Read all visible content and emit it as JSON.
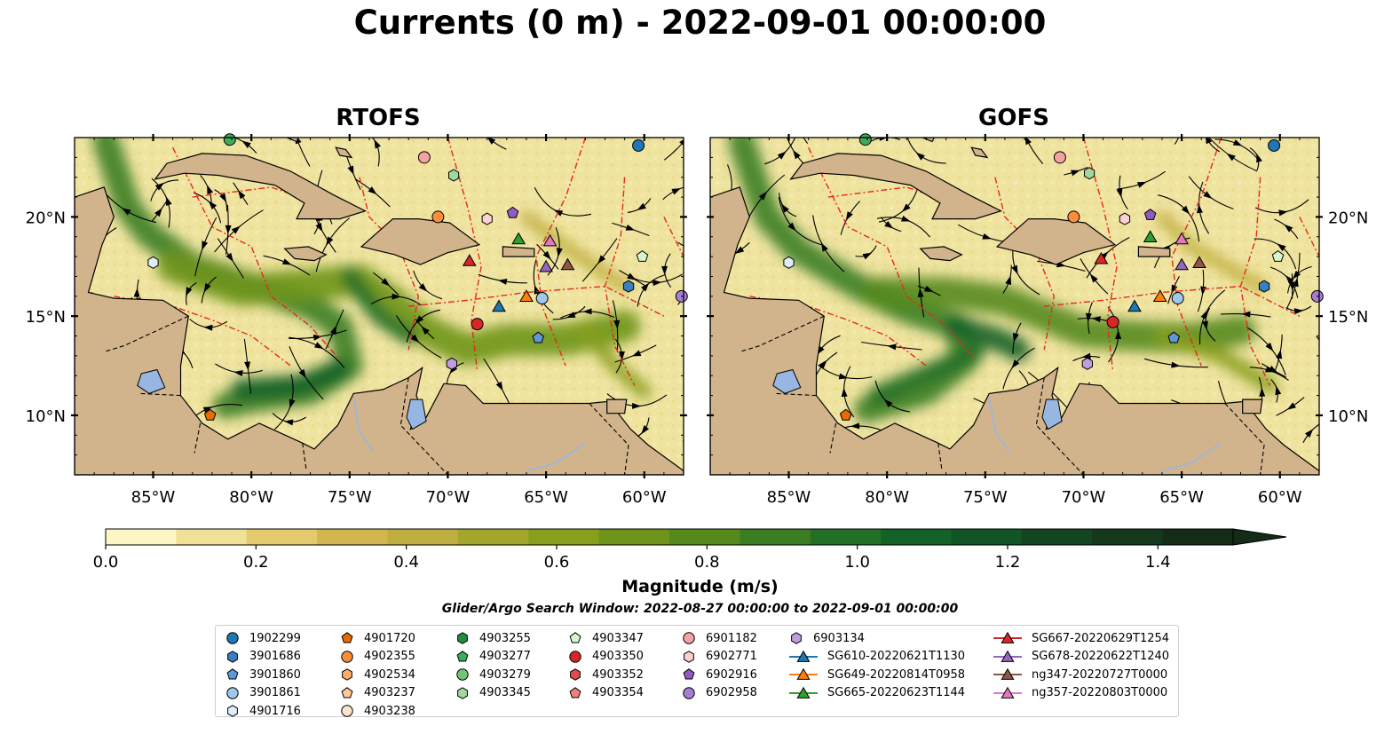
{
  "figure": {
    "title": "Currents (0 m) - 2022-09-01 00:00:00",
    "search_window": "Glider/Argo Search Window: 2022-08-27 00:00:00 to 2022-09-01 00:00:00"
  },
  "chart_data": {
    "type": "heatmap",
    "variable": "Currents (0 m)",
    "panels": [
      {
        "title": "RTOFS"
      },
      {
        "title": "GOFS"
      }
    ],
    "lon_range": [
      -89,
      -58
    ],
    "lat_range": [
      7,
      24
    ],
    "x_ticks": [
      {
        "value": -85,
        "label": "85°W"
      },
      {
        "value": -80,
        "label": "80°W"
      },
      {
        "value": -75,
        "label": "75°W"
      },
      {
        "value": -70,
        "label": "70°W"
      },
      {
        "value": -65,
        "label": "65°W"
      },
      {
        "value": -60,
        "label": "60°W"
      }
    ],
    "y_ticks": [
      {
        "value": 10,
        "label": "10°N"
      },
      {
        "value": 15,
        "label": "15°N"
      },
      {
        "value": 20,
        "label": "20°N"
      }
    ],
    "colorbar": {
      "label": "Magnitude (m/s)",
      "min": 0.0,
      "max": 1.5,
      "extend": "max",
      "ticks": [
        "0.0",
        "0.2",
        "0.4",
        "0.6",
        "0.8",
        "1.0",
        "1.2",
        "1.4"
      ],
      "tick_values": [
        0.0,
        0.2,
        0.4,
        0.6,
        0.8,
        1.0,
        1.2,
        1.4
      ],
      "colors": [
        "#fbf6c4",
        "#f0e196",
        "#e2ca6d",
        "#d2b64f",
        "#bfae3f",
        "#a3a72c",
        "#889f1c",
        "#6e951a",
        "#548a1c",
        "#3b7e21",
        "#246f26",
        "#156228",
        "#115426",
        "#124621",
        "#13381c",
        "#132b17"
      ]
    },
    "legend": {
      "columns": [
        [
          {
            "label": "1902299",
            "marker": "circle",
            "color": "#1f77b4"
          },
          {
            "label": "3901686",
            "marker": "hexagon",
            "color": "#3a7fc2"
          },
          {
            "label": "3901860",
            "marker": "pentagon",
            "color": "#5f98d6"
          },
          {
            "label": "3901861",
            "marker": "circle",
            "color": "#9ec8ec"
          },
          {
            "label": "4901716",
            "marker": "hexagon",
            "color": "#ddeefb"
          }
        ],
        [
          {
            "label": "4901720",
            "marker": "pentagon",
            "color": "#e86b00"
          },
          {
            "label": "4902355",
            "marker": "circle",
            "color": "#fd8d3c"
          },
          {
            "label": "4902534",
            "marker": "hexagon",
            "color": "#fdae6b"
          },
          {
            "label": "4903237",
            "marker": "pentagon",
            "color": "#fdc89a"
          },
          {
            "label": "4903238",
            "marker": "circle",
            "color": "#fee6ce"
          }
        ],
        [
          {
            "label": "4903255",
            "marker": "hexagon",
            "color": "#238b45"
          },
          {
            "label": "4903277",
            "marker": "pentagon",
            "color": "#41ab5d"
          },
          {
            "label": "4903279",
            "marker": "circle",
            "color": "#74c476"
          },
          {
            "label": "4903345",
            "marker": "hexagon",
            "color": "#a1d99b"
          }
        ],
        [
          {
            "label": "4903347",
            "marker": "pentagon",
            "color": "#d9f5d0"
          },
          {
            "label": "4903350",
            "marker": "circle",
            "color": "#d62728"
          },
          {
            "label": "4903352",
            "marker": "hexagon",
            "color": "#e34a4a"
          },
          {
            "label": "4903354",
            "marker": "pentagon",
            "color": "#f08080"
          }
        ],
        [
          {
            "label": "6901182",
            "marker": "circle",
            "color": "#f4a3a3"
          },
          {
            "label": "6902771",
            "marker": "hexagon",
            "color": "#fbd1d1"
          },
          {
            "label": "6902916",
            "marker": "pentagon",
            "color": "#8e5cc2"
          },
          {
            "label": "6902958",
            "marker": "circle",
            "color": "#a57fd1"
          }
        ],
        [
          {
            "label": "6903134",
            "marker": "hexagon",
            "color": "#bf9de0"
          },
          {
            "label": "SG610-20220621T1130",
            "marker": "triangle",
            "color": "#1f77b4"
          },
          {
            "label": "SG649-20220814T0958",
            "marker": "triangle",
            "color": "#ff7f0e"
          },
          {
            "label": "SG665-20220623T1144",
            "marker": "triangle",
            "color": "#2ca02c"
          }
        ],
        [
          {
            "label": "SG667-20220629T1254",
            "marker": "triangle",
            "color": "#d62728"
          },
          {
            "label": "SG678-20220622T1240",
            "marker": "triangle",
            "color": "#9467bd"
          },
          {
            "label": "ng347-20220727T0000",
            "marker": "triangle",
            "color": "#8c564b"
          },
          {
            "label": "ng357-20220803T0000",
            "marker": "triangle",
            "color": "#e377c2"
          }
        ]
      ]
    },
    "markers": {
      "rtofs": [
        {
          "lon": -60.3,
          "lat": 23.6,
          "marker": "circle",
          "color": "#1f77b4"
        },
        {
          "lon": -71.2,
          "lat": 23.0,
          "marker": "circle",
          "color": "#f4a3a3"
        },
        {
          "lon": -69.7,
          "lat": 22.1,
          "marker": "hexagon",
          "color": "#a1d99b"
        },
        {
          "lon": -70.5,
          "lat": 20.0,
          "marker": "circle",
          "color": "#fd8d3c"
        },
        {
          "lon": -68.0,
          "lat": 19.9,
          "marker": "hexagon",
          "color": "#fbd1d1"
        },
        {
          "lon": -66.7,
          "lat": 20.2,
          "marker": "pentagon",
          "color": "#8e5cc2"
        },
        {
          "lon": -66.4,
          "lat": 18.9,
          "marker": "triangle",
          "color": "#2ca02c"
        },
        {
          "lon": -64.8,
          "lat": 18.8,
          "marker": "triangle",
          "color": "#e377c2"
        },
        {
          "lon": -60.1,
          "lat": 18.0,
          "marker": "pentagon",
          "color": "#d9f5d0"
        },
        {
          "lon": -68.9,
          "lat": 17.8,
          "marker": "triangle",
          "color": "#d62728"
        },
        {
          "lon": -65.0,
          "lat": 17.5,
          "marker": "triangle",
          "color": "#9467bd"
        },
        {
          "lon": -63.9,
          "lat": 17.6,
          "marker": "triangle",
          "color": "#8c564b"
        },
        {
          "lon": -60.8,
          "lat": 16.5,
          "marker": "hexagon",
          "color": "#3a7fc2"
        },
        {
          "lon": -58.1,
          "lat": 16.0,
          "marker": "circle",
          "color": "#a57fd1"
        },
        {
          "lon": -85.0,
          "lat": 17.7,
          "marker": "hexagon",
          "color": "#ddeefb"
        },
        {
          "lon": -65.2,
          "lat": 15.9,
          "marker": "circle",
          "color": "#9ec8ec"
        },
        {
          "lon": -66.0,
          "lat": 16.0,
          "marker": "triangle",
          "color": "#ff7f0e"
        },
        {
          "lon": -67.4,
          "lat": 15.5,
          "marker": "triangle",
          "color": "#1f77b4"
        },
        {
          "lon": -68.5,
          "lat": 14.6,
          "marker": "circle",
          "color": "#d62728"
        },
        {
          "lon": -65.4,
          "lat": 13.9,
          "marker": "pentagon",
          "color": "#5f98d6"
        },
        {
          "lon": -69.8,
          "lat": 12.6,
          "marker": "hexagon",
          "color": "#bf9de0"
        },
        {
          "lon": -82.1,
          "lat": 10.0,
          "marker": "pentagon",
          "color": "#e86b00"
        },
        {
          "lon": -81.1,
          "lat": 23.9,
          "marker": "circle",
          "color": "#41ab5d"
        }
      ],
      "gofs": [
        {
          "lon": -60.3,
          "lat": 23.6,
          "marker": "circle",
          "color": "#1f77b4"
        },
        {
          "lon": -71.2,
          "lat": 23.0,
          "marker": "circle",
          "color": "#f4a3a3"
        },
        {
          "lon": -69.7,
          "lat": 22.2,
          "marker": "hexagon",
          "color": "#a1d99b"
        },
        {
          "lon": -70.5,
          "lat": 20.0,
          "marker": "circle",
          "color": "#fd8d3c"
        },
        {
          "lon": -67.9,
          "lat": 19.9,
          "marker": "hexagon",
          "color": "#fbd1d1"
        },
        {
          "lon": -66.6,
          "lat": 20.1,
          "marker": "pentagon",
          "color": "#8e5cc2"
        },
        {
          "lon": -66.6,
          "lat": 19.0,
          "marker": "triangle",
          "color": "#2ca02c"
        },
        {
          "lon": -65.0,
          "lat": 18.9,
          "marker": "triangle",
          "color": "#e377c2"
        },
        {
          "lon": -60.1,
          "lat": 18.0,
          "marker": "pentagon",
          "color": "#d9f5d0"
        },
        {
          "lon": -69.1,
          "lat": 17.9,
          "marker": "triangle",
          "color": "#d62728"
        },
        {
          "lon": -65.0,
          "lat": 17.6,
          "marker": "triangle",
          "color": "#9467bd"
        },
        {
          "lon": -64.1,
          "lat": 17.7,
          "marker": "triangle",
          "color": "#8c564b"
        },
        {
          "lon": -60.8,
          "lat": 16.5,
          "marker": "hexagon",
          "color": "#3a7fc2"
        },
        {
          "lon": -58.1,
          "lat": 16.0,
          "marker": "circle",
          "color": "#a57fd1"
        },
        {
          "lon": -85.0,
          "lat": 17.7,
          "marker": "hexagon",
          "color": "#ddeefb"
        },
        {
          "lon": -65.2,
          "lat": 15.9,
          "marker": "circle",
          "color": "#9ec8ec"
        },
        {
          "lon": -66.1,
          "lat": 16.0,
          "marker": "triangle",
          "color": "#ff7f0e"
        },
        {
          "lon": -67.4,
          "lat": 15.5,
          "marker": "triangle",
          "color": "#1f77b4"
        },
        {
          "lon": -68.5,
          "lat": 14.7,
          "marker": "circle",
          "color": "#d62728"
        },
        {
          "lon": -65.4,
          "lat": 13.9,
          "marker": "pentagon",
          "color": "#5f98d6"
        },
        {
          "lon": -69.8,
          "lat": 12.6,
          "marker": "hexagon",
          "color": "#bf9de0"
        },
        {
          "lon": -82.1,
          "lat": 10.0,
          "marker": "pentagon",
          "color": "#e86b00"
        },
        {
          "lon": -81.1,
          "lat": 23.9,
          "marker": "circle",
          "color": "#41ab5d"
        }
      ]
    }
  }
}
